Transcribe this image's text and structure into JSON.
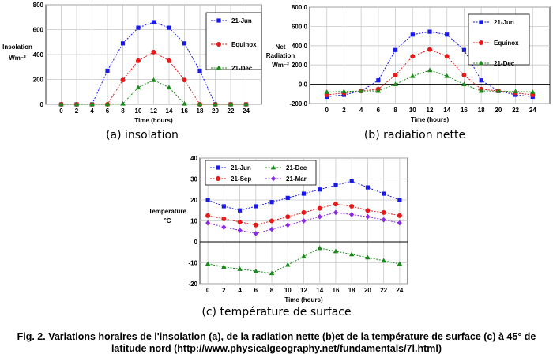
{
  "chart_data": [
    {
      "id": "a",
      "type": "line",
      "ylabel": "Insolation",
      "yunit": "Wm⁻²",
      "xlabel": "Time (hours)",
      "xticks": [
        "0",
        "2",
        "4",
        "6",
        "8",
        "10",
        "12",
        "14",
        "16",
        "18",
        "20",
        "22",
        "24"
      ],
      "yticks": [
        "0",
        "200",
        "400",
        "600",
        "800"
      ],
      "ylim": [
        0,
        800
      ],
      "xlim": [
        -2,
        26
      ],
      "grid": true,
      "legend": "top-right",
      "series": [
        {
          "name": "21-Jun",
          "marker": "square",
          "color": "#1a1ae6",
          "x": [
            0,
            2,
            4,
            6,
            8,
            10,
            12,
            14,
            16,
            18,
            20,
            22,
            24
          ],
          "values": [
            0,
            0,
            0,
            270,
            490,
            615,
            660,
            615,
            490,
            270,
            0,
            0,
            0
          ]
        },
        {
          "name": "Equinox",
          "marker": "circle",
          "color": "#e61a1a",
          "x": [
            0,
            2,
            4,
            6,
            8,
            10,
            12,
            14,
            16,
            18,
            20,
            22,
            24
          ],
          "values": [
            0,
            0,
            0,
            0,
            195,
            350,
            420,
            350,
            195,
            0,
            0,
            0,
            0
          ]
        },
        {
          "name": "21-Dec",
          "marker": "triangle",
          "color": "#1a8a1a",
          "x": [
            0,
            2,
            4,
            6,
            8,
            10,
            12,
            14,
            16,
            18,
            20,
            22,
            24
          ],
          "values": [
            0,
            0,
            0,
            0,
            5,
            135,
            195,
            135,
            5,
            0,
            0,
            0,
            0
          ]
        }
      ]
    },
    {
      "id": "b",
      "type": "line",
      "ylabel": "Net Radiation",
      "yunit": "Wm⁻²",
      "xlabel": "Time (hours)",
      "xticks": [
        "0",
        "2",
        "4",
        "6",
        "8",
        "10",
        "12",
        "14",
        "16",
        "18",
        "20",
        "22",
        "24"
      ],
      "yticks": [
        "-200.0",
        "0.0",
        "200.0",
        "400.0",
        "600.0",
        "800.0"
      ],
      "ylim": [
        -200,
        800
      ],
      "xlim": [
        -2,
        26
      ],
      "grid": true,
      "legend": "top-right",
      "series": [
        {
          "name": "21-Jun",
          "marker": "square",
          "color": "#1a1ae6",
          "x": [
            0,
            2,
            4,
            6,
            8,
            10,
            12,
            14,
            16,
            18,
            20,
            22,
            24
          ],
          "values": [
            -130,
            -110,
            -70,
            40,
            355,
            515,
            545,
            515,
            355,
            40,
            -70,
            -110,
            -130
          ]
        },
        {
          "name": "Equinox",
          "marker": "circle",
          "color": "#e61a1a",
          "x": [
            0,
            2,
            4,
            6,
            8,
            10,
            12,
            14,
            16,
            18,
            20,
            22,
            24
          ],
          "values": [
            -110,
            -90,
            -70,
            -50,
            95,
            290,
            360,
            290,
            95,
            -50,
            -70,
            -90,
            -110
          ]
        },
        {
          "name": "21-Dec",
          "marker": "triangle",
          "color": "#1a8a1a",
          "x": [
            0,
            2,
            4,
            6,
            8,
            10,
            12,
            14,
            16,
            18,
            20,
            22,
            24
          ],
          "values": [
            -80,
            -75,
            -70,
            -70,
            0,
            85,
            145,
            85,
            0,
            -70,
            -70,
            -75,
            -80
          ]
        }
      ]
    },
    {
      "id": "c",
      "type": "line",
      "ylabel": "Temperature",
      "yunit": "°C",
      "xlabel": "Time (hours)",
      "xticks": [
        "0",
        "2",
        "4",
        "6",
        "8",
        "10",
        "12",
        "14",
        "16",
        "18",
        "20",
        "22",
        "24"
      ],
      "yticks": [
        "-20",
        "-10",
        "0",
        "10",
        "20",
        "30",
        "40"
      ],
      "ylim": [
        -20,
        40
      ],
      "xlim": [
        -1,
        25
      ],
      "grid": true,
      "legend": "top",
      "series": [
        {
          "name": "21-Jun",
          "marker": "square",
          "color": "#1a1ae6",
          "x": [
            0,
            2,
            4,
            6,
            8,
            10,
            12,
            14,
            16,
            18,
            20,
            22,
            24
          ],
          "values": [
            20,
            17,
            15,
            17,
            19,
            21,
            23,
            25,
            27,
            29,
            26,
            23,
            20
          ]
        },
        {
          "name": "21-Dec",
          "marker": "triangle",
          "color": "#1a8a1a",
          "x": [
            0,
            2,
            4,
            6,
            8,
            10,
            12,
            14,
            16,
            18,
            20,
            22,
            24
          ],
          "values": [
            -10.5,
            -12,
            -13,
            -14,
            -15,
            -11,
            -7,
            -3,
            -4.5,
            -6,
            -7.5,
            -9,
            -10.5
          ]
        },
        {
          "name": "21-Sep",
          "marker": "circle",
          "color": "#e61a1a",
          "x": [
            0,
            2,
            4,
            6,
            8,
            10,
            12,
            14,
            16,
            18,
            20,
            22,
            24
          ],
          "values": [
            12.5,
            11,
            9.5,
            8,
            10,
            12,
            14,
            16,
            18,
            17,
            15,
            14,
            12.5
          ]
        },
        {
          "name": "21-Mar",
          "marker": "diamond",
          "color": "#8a2be2",
          "x": [
            0,
            2,
            4,
            6,
            8,
            10,
            12,
            14,
            16,
            18,
            20,
            22,
            24
          ],
          "values": [
            9,
            7,
            5.5,
            4,
            6,
            8,
            10,
            12,
            14,
            13,
            12,
            10.5,
            9
          ]
        }
      ]
    }
  ],
  "subcaptions": {
    "a": "(a) insolation",
    "b": "(b) radiation nette",
    "c": "(c) température de surface"
  },
  "caption": {
    "line1_pre": "Fig. 2. Variations horaires de ",
    "line1_link": "l'",
    "line1_post": "insolation (a), de la radiation nette (b)et de la température de surface (c) à 45° de",
    "line2": "latitude nord (http://www.physicalgeography.net/fundamentals/7l.html)"
  }
}
